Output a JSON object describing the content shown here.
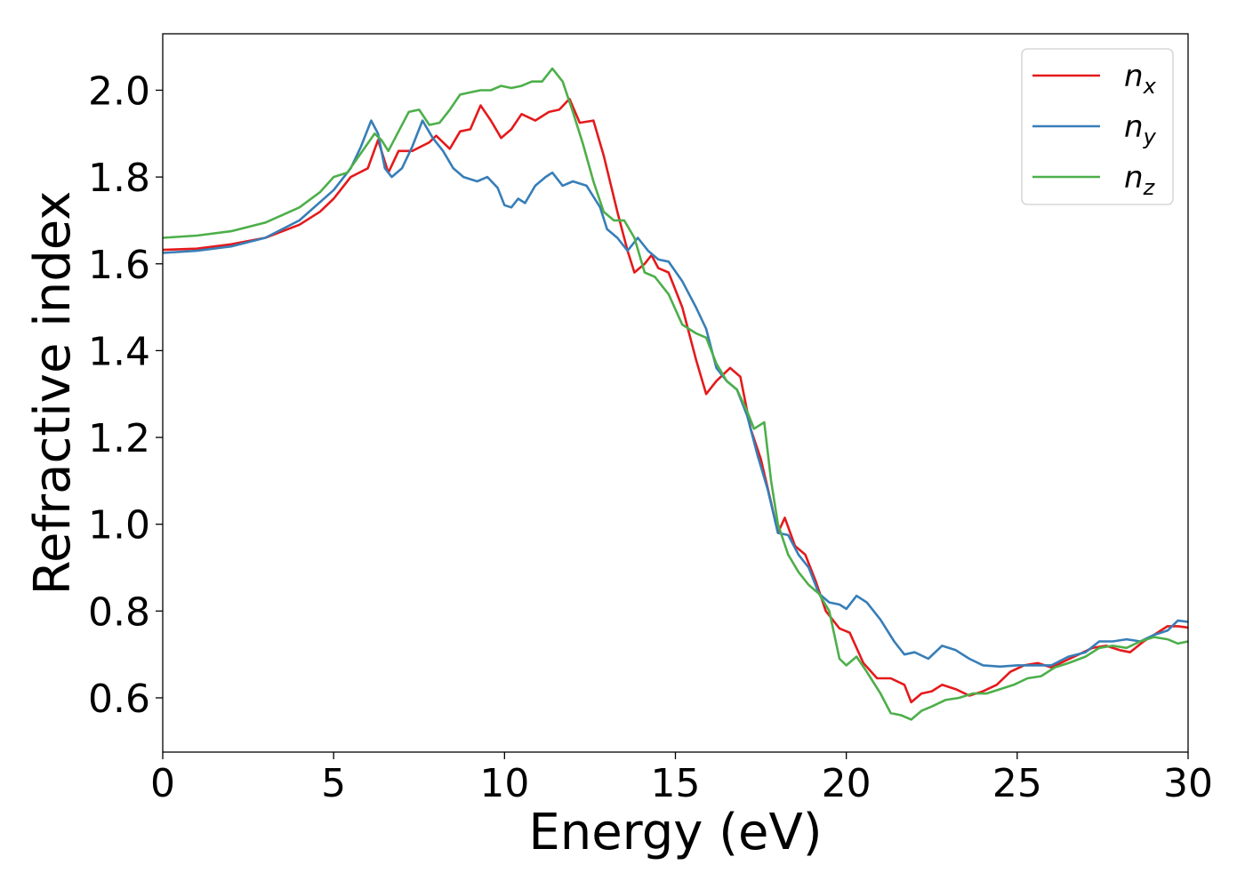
{
  "chart_data": {
    "type": "line",
    "title": "",
    "xlabel": "Energy (eV)",
    "ylabel": "Refractive index",
    "xlim": [
      0,
      30
    ],
    "ylim": [
      0.475,
      2.13
    ],
    "xticks": [
      "0",
      "5",
      "10",
      "15",
      "20",
      "25",
      "30"
    ],
    "yticks": [
      "0.6",
      "0.8",
      "1.0",
      "1.2",
      "1.4",
      "1.6",
      "1.8",
      "2.0"
    ],
    "grid": false,
    "legend_position": "top-right",
    "series": [
      {
        "name": "n",
        "subscript": "x",
        "color": "#e41a1c",
        "points": [
          [
            0,
            1.632
          ],
          [
            1,
            1.635
          ],
          [
            2,
            1.645
          ],
          [
            3,
            1.66
          ],
          [
            4,
            1.69
          ],
          [
            4.6,
            1.72
          ],
          [
            5,
            1.75
          ],
          [
            5.5,
            1.8
          ],
          [
            6,
            1.82
          ],
          [
            6.3,
            1.885
          ],
          [
            6.6,
            1.81
          ],
          [
            6.9,
            1.86
          ],
          [
            7.3,
            1.86
          ],
          [
            7.8,
            1.88
          ],
          [
            8,
            1.895
          ],
          [
            8.4,
            1.865
          ],
          [
            8.7,
            1.905
          ],
          [
            9,
            1.91
          ],
          [
            9.3,
            1.965
          ],
          [
            9.6,
            1.93
          ],
          [
            9.9,
            1.89
          ],
          [
            10.2,
            1.91
          ],
          [
            10.5,
            1.945
          ],
          [
            10.9,
            1.93
          ],
          [
            11.3,
            1.95
          ],
          [
            11.6,
            1.955
          ],
          [
            11.9,
            1.98
          ],
          [
            12.2,
            1.925
          ],
          [
            12.6,
            1.93
          ],
          [
            12.9,
            1.85
          ],
          [
            13.3,
            1.72
          ],
          [
            13.6,
            1.63
          ],
          [
            13.8,
            1.58
          ],
          [
            14.1,
            1.6
          ],
          [
            14.3,
            1.62
          ],
          [
            14.5,
            1.59
          ],
          [
            14.8,
            1.58
          ],
          [
            15.2,
            1.5
          ],
          [
            15.6,
            1.38
          ],
          [
            15.9,
            1.3
          ],
          [
            16.2,
            1.33
          ],
          [
            16.6,
            1.36
          ],
          [
            16.9,
            1.34
          ],
          [
            17.2,
            1.22
          ],
          [
            17.5,
            1.15
          ],
          [
            17.8,
            1.05
          ],
          [
            18,
            0.98
          ],
          [
            18.2,
            1.015
          ],
          [
            18.5,
            0.95
          ],
          [
            18.8,
            0.93
          ],
          [
            19.1,
            0.87
          ],
          [
            19.4,
            0.8
          ],
          [
            19.8,
            0.76
          ],
          [
            20.1,
            0.75
          ],
          [
            20.5,
            0.68
          ],
          [
            20.9,
            0.645
          ],
          [
            21.3,
            0.645
          ],
          [
            21.7,
            0.63
          ],
          [
            21.9,
            0.59
          ],
          [
            22.2,
            0.61
          ],
          [
            22.5,
            0.615
          ],
          [
            22.8,
            0.63
          ],
          [
            23.2,
            0.62
          ],
          [
            23.6,
            0.605
          ],
          [
            24,
            0.615
          ],
          [
            24.4,
            0.63
          ],
          [
            24.8,
            0.66
          ],
          [
            25.2,
            0.675
          ],
          [
            25.6,
            0.68
          ],
          [
            26,
            0.67
          ],
          [
            26.4,
            0.685
          ],
          [
            26.8,
            0.7
          ],
          [
            27.2,
            0.715
          ],
          [
            27.6,
            0.72
          ],
          [
            28,
            0.71
          ],
          [
            28.3,
            0.705
          ],
          [
            28.7,
            0.73
          ],
          [
            29,
            0.745
          ],
          [
            29.4,
            0.765
          ],
          [
            29.7,
            0.765
          ],
          [
            30,
            0.762
          ]
        ]
      },
      {
        "name": "n",
        "subscript": "y",
        "color": "#377eb8",
        "points": [
          [
            0,
            1.625
          ],
          [
            1,
            1.63
          ],
          [
            2,
            1.64
          ],
          [
            3,
            1.66
          ],
          [
            4,
            1.7
          ],
          [
            5,
            1.77
          ],
          [
            5.5,
            1.82
          ],
          [
            5.8,
            1.87
          ],
          [
            6.1,
            1.93
          ],
          [
            6.3,
            1.9
          ],
          [
            6.5,
            1.82
          ],
          [
            6.7,
            1.8
          ],
          [
            7,
            1.82
          ],
          [
            7.3,
            1.87
          ],
          [
            7.6,
            1.93
          ],
          [
            7.9,
            1.89
          ],
          [
            8.2,
            1.86
          ],
          [
            8.5,
            1.82
          ],
          [
            8.8,
            1.8
          ],
          [
            9.2,
            1.79
          ],
          [
            9.5,
            1.8
          ],
          [
            9.8,
            1.775
          ],
          [
            10,
            1.735
          ],
          [
            10.2,
            1.73
          ],
          [
            10.4,
            1.75
          ],
          [
            10.6,
            1.74
          ],
          [
            10.9,
            1.78
          ],
          [
            11.2,
            1.8
          ],
          [
            11.4,
            1.81
          ],
          [
            11.7,
            1.78
          ],
          [
            12,
            1.79
          ],
          [
            12.4,
            1.78
          ],
          [
            12.8,
            1.73
          ],
          [
            13,
            1.68
          ],
          [
            13.3,
            1.66
          ],
          [
            13.6,
            1.63
          ],
          [
            13.9,
            1.66
          ],
          [
            14.2,
            1.63
          ],
          [
            14.5,
            1.61
          ],
          [
            14.8,
            1.605
          ],
          [
            15.2,
            1.56
          ],
          [
            15.6,
            1.5
          ],
          [
            15.9,
            1.45
          ],
          [
            16.2,
            1.36
          ],
          [
            16.5,
            1.33
          ],
          [
            16.8,
            1.31
          ],
          [
            17.1,
            1.25
          ],
          [
            17.4,
            1.16
          ],
          [
            17.7,
            1.08
          ],
          [
            18,
            0.98
          ],
          [
            18.3,
            0.975
          ],
          [
            18.6,
            0.93
          ],
          [
            18.9,
            0.9
          ],
          [
            19.2,
            0.84
          ],
          [
            19.5,
            0.82
          ],
          [
            19.8,
            0.815
          ],
          [
            20,
            0.805
          ],
          [
            20.3,
            0.835
          ],
          [
            20.6,
            0.82
          ],
          [
            21,
            0.78
          ],
          [
            21.4,
            0.73
          ],
          [
            21.7,
            0.7
          ],
          [
            22,
            0.705
          ],
          [
            22.4,
            0.69
          ],
          [
            22.8,
            0.72
          ],
          [
            23.2,
            0.71
          ],
          [
            23.6,
            0.69
          ],
          [
            24,
            0.675
          ],
          [
            24.5,
            0.672
          ],
          [
            25,
            0.675
          ],
          [
            25.5,
            0.675
          ],
          [
            26,
            0.675
          ],
          [
            26.5,
            0.695
          ],
          [
            27,
            0.705
          ],
          [
            27.4,
            0.73
          ],
          [
            27.8,
            0.73
          ],
          [
            28.2,
            0.735
          ],
          [
            28.6,
            0.73
          ],
          [
            29,
            0.745
          ],
          [
            29.4,
            0.755
          ],
          [
            29.7,
            0.778
          ],
          [
            30,
            0.775
          ]
        ]
      },
      {
        "name": "n",
        "subscript": "z",
        "color": "#4daf4a",
        "points": [
          [
            0,
            1.66
          ],
          [
            1,
            1.665
          ],
          [
            2,
            1.675
          ],
          [
            3,
            1.695
          ],
          [
            4,
            1.73
          ],
          [
            4.6,
            1.765
          ],
          [
            5,
            1.8
          ],
          [
            5.4,
            1.81
          ],
          [
            5.8,
            1.855
          ],
          [
            6.2,
            1.9
          ],
          [
            6.4,
            1.885
          ],
          [
            6.6,
            1.86
          ],
          [
            6.9,
            1.905
          ],
          [
            7.2,
            1.95
          ],
          [
            7.5,
            1.955
          ],
          [
            7.8,
            1.92
          ],
          [
            8.1,
            1.925
          ],
          [
            8.4,
            1.955
          ],
          [
            8.7,
            1.99
          ],
          [
            9,
            1.995
          ],
          [
            9.3,
            2.0
          ],
          [
            9.6,
            2.0
          ],
          [
            9.9,
            2.01
          ],
          [
            10.2,
            2.005
          ],
          [
            10.5,
            2.01
          ],
          [
            10.8,
            2.02
          ],
          [
            11.1,
            2.02
          ],
          [
            11.4,
            2.05
          ],
          [
            11.7,
            2.02
          ],
          [
            12,
            1.95
          ],
          [
            12.3,
            1.875
          ],
          [
            12.6,
            1.79
          ],
          [
            12.9,
            1.72
          ],
          [
            13.2,
            1.7
          ],
          [
            13.5,
            1.7
          ],
          [
            13.8,
            1.66
          ],
          [
            14.1,
            1.58
          ],
          [
            14.4,
            1.57
          ],
          [
            14.8,
            1.53
          ],
          [
            15.2,
            1.46
          ],
          [
            15.6,
            1.44
          ],
          [
            15.9,
            1.43
          ],
          [
            16.2,
            1.37
          ],
          [
            16.5,
            1.33
          ],
          [
            16.8,
            1.31
          ],
          [
            17.1,
            1.26
          ],
          [
            17.3,
            1.22
          ],
          [
            17.6,
            1.235
          ],
          [
            17.8,
            1.1
          ],
          [
            18,
            1.0
          ],
          [
            18.3,
            0.93
          ],
          [
            18.6,
            0.89
          ],
          [
            18.9,
            0.86
          ],
          [
            19.2,
            0.84
          ],
          [
            19.5,
            0.8
          ],
          [
            19.8,
            0.69
          ],
          [
            20,
            0.675
          ],
          [
            20.3,
            0.695
          ],
          [
            20.6,
            0.66
          ],
          [
            21,
            0.61
          ],
          [
            21.3,
            0.565
          ],
          [
            21.6,
            0.56
          ],
          [
            21.9,
            0.55
          ],
          [
            22.2,
            0.57
          ],
          [
            22.5,
            0.58
          ],
          [
            22.9,
            0.595
          ],
          [
            23.3,
            0.6
          ],
          [
            23.7,
            0.61
          ],
          [
            24.1,
            0.61
          ],
          [
            24.5,
            0.62
          ],
          [
            24.9,
            0.63
          ],
          [
            25.3,
            0.645
          ],
          [
            25.7,
            0.65
          ],
          [
            26.1,
            0.67
          ],
          [
            26.5,
            0.68
          ],
          [
            27,
            0.695
          ],
          [
            27.4,
            0.715
          ],
          [
            27.8,
            0.72
          ],
          [
            28.2,
            0.715
          ],
          [
            28.6,
            0.73
          ],
          [
            29,
            0.74
          ],
          [
            29.4,
            0.735
          ],
          [
            29.7,
            0.725
          ],
          [
            30,
            0.73
          ]
        ]
      }
    ]
  }
}
